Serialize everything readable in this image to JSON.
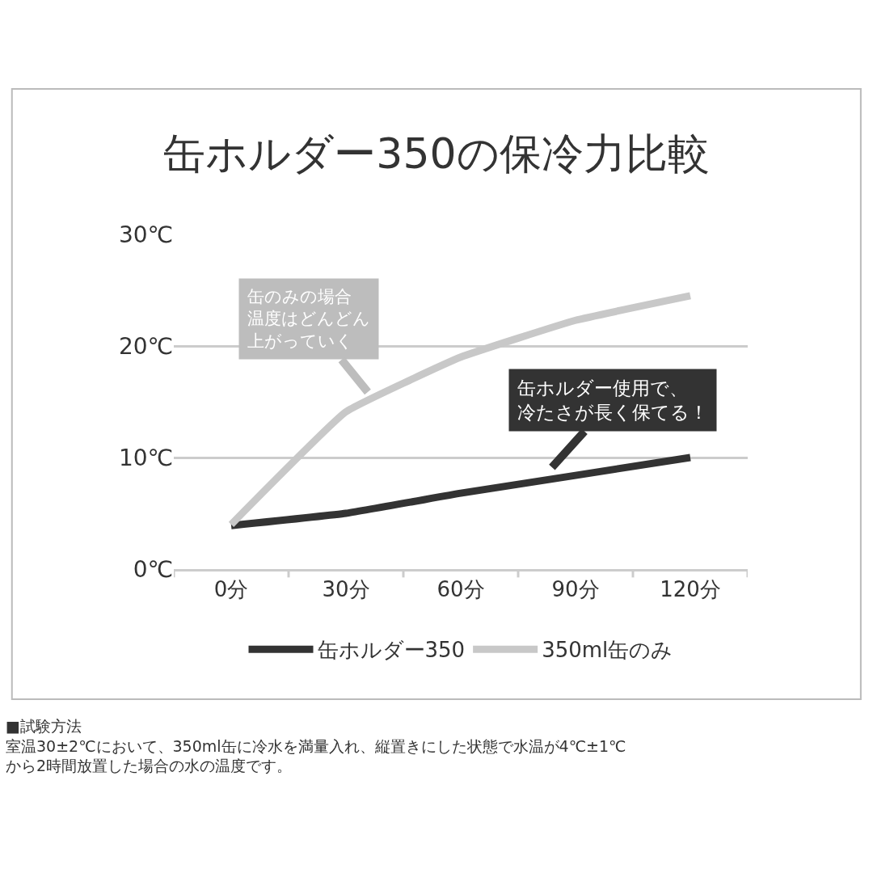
{
  "chart_data": {
    "type": "line",
    "title": "缶ホルダー350の保冷力比較",
    "categories": [
      "0分",
      "30分",
      "60分",
      "90分",
      "120分"
    ],
    "series": [
      {
        "name": "缶ホルダー350",
        "color": "#333333",
        "values": [
          3.9,
          5.0,
          6.8,
          8.4,
          10.0
        ]
      },
      {
        "name": "350ml缶のみ",
        "color": "#c8c8c8",
        "values": [
          4.0,
          14.1,
          19.0,
          22.3,
          24.5
        ]
      }
    ],
    "ylim": [
      0,
      30
    ],
    "yticks": [
      {
        "value": 0,
        "label": "0℃"
      },
      {
        "value": 10,
        "label": "10℃"
      },
      {
        "value": 20,
        "label": "20℃"
      },
      {
        "value": 30,
        "label": "30℃"
      }
    ],
    "grid": "y",
    "legend": "bottom",
    "marker": "none",
    "line_style": "solid",
    "annotations": [
      "缶のみの場合温度はどんどん上がっていく",
      "缶ホルダー使用で、冷たさが長く保てる！",
      "■試験方法室温30±2℃において、350ml缶に冷水を満量入れ、縦置きにした状態で水温が4℃±1℃から2時間放置した場合の水の温度です。"
    ]
  }
}
